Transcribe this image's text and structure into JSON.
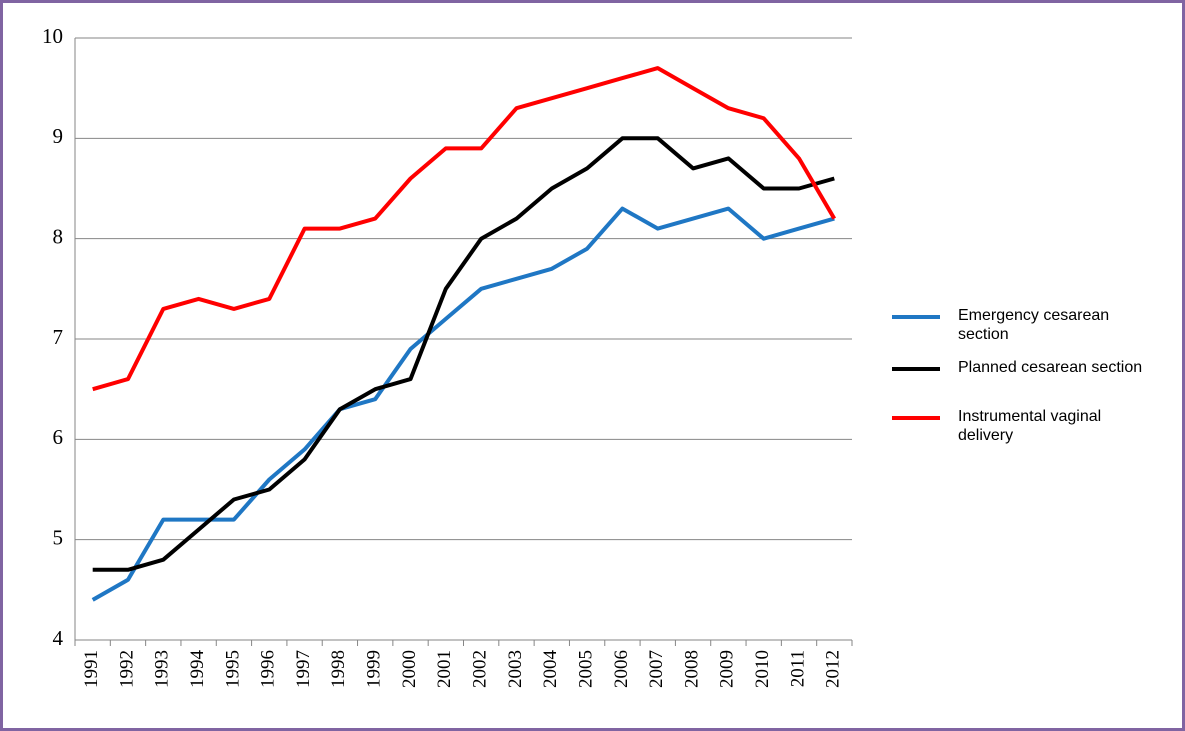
{
  "chart_data": {
    "type": "line",
    "categories": [
      "1991",
      "1992",
      "1993",
      "1994",
      "1995",
      "1996",
      "1997",
      "1998",
      "1999",
      "2000",
      "2001",
      "2002",
      "2003",
      "2004",
      "2005",
      "2006",
      "2007",
      "2008",
      "2009",
      "2010",
      "2011",
      "2012"
    ],
    "series": [
      {
        "name": "Emergency cesarean section",
        "color": "#1f77c4",
        "values": [
          4.4,
          4.6,
          5.2,
          5.2,
          5.2,
          5.6,
          5.9,
          6.3,
          6.4,
          6.9,
          7.2,
          7.5,
          7.6,
          7.7,
          7.9,
          8.3,
          8.1,
          8.2,
          8.3,
          8.0,
          8.1,
          8.2
        ]
      },
      {
        "name": "Planned  cesarean section",
        "color": "#000000",
        "values": [
          4.7,
          4.7,
          4.8,
          5.1,
          5.4,
          5.5,
          5.8,
          6.3,
          6.5,
          6.6,
          7.5,
          8.0,
          8.2,
          8.5,
          8.7,
          9.0,
          9.0,
          8.7,
          8.8,
          8.5,
          8.5,
          8.6
        ]
      },
      {
        "name": "Instrumental vaginal delivery",
        "color": "#ff0000",
        "values": [
          6.5,
          6.6,
          7.3,
          7.4,
          7.3,
          7.4,
          8.1,
          8.1,
          8.2,
          8.6,
          8.9,
          8.9,
          9.3,
          9.4,
          9.5,
          9.6,
          9.7,
          9.5,
          9.3,
          9.2,
          8.8,
          8.2
        ]
      }
    ],
    "ylim": [
      4,
      10
    ],
    "yticks": [
      4,
      5,
      6,
      7,
      8,
      9,
      10
    ],
    "grid": true,
    "legend": "right"
  }
}
